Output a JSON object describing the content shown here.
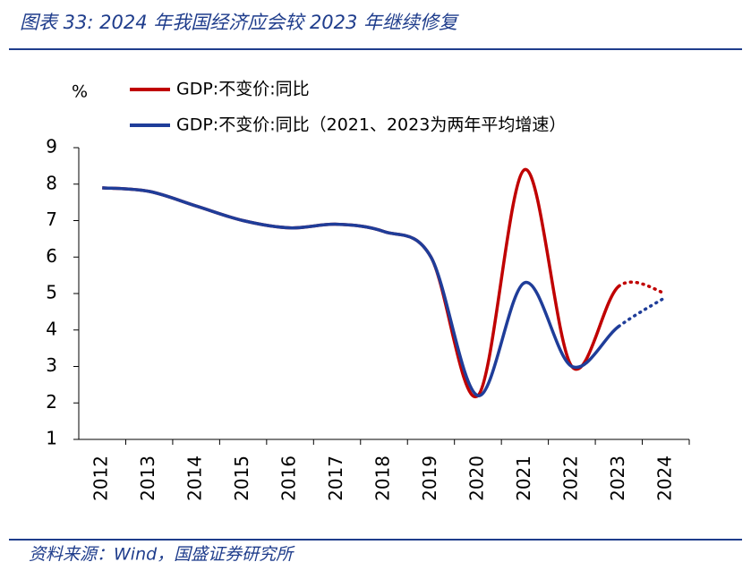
{
  "title": "图表 33:  2024 年我国经济应会较 2023 年继续修复",
  "source": "资料来源：Wind，国盛证券研究所",
  "chart_data": {
    "type": "line",
    "y_unit": "%",
    "categories": [
      "2012",
      "2013",
      "2014",
      "2015",
      "2016",
      "2017",
      "2018",
      "2019",
      "2020",
      "2021",
      "2022",
      "2023",
      "2024"
    ],
    "series": [
      {
        "name": "GDP:不变价:同比",
        "color": "#c00000",
        "values": [
          7.9,
          7.8,
          7.4,
          7.0,
          6.8,
          6.9,
          6.7,
          6.0,
          2.2,
          8.4,
          3.0,
          5.2,
          5.0
        ]
      },
      {
        "name": "GDP:不变价:同比（2021、2023为两年平均增速）",
        "color": "#1f3d99",
        "values": [
          7.9,
          7.8,
          7.4,
          7.0,
          6.8,
          6.9,
          6.7,
          6.0,
          2.2,
          5.3,
          3.0,
          4.1,
          4.9
        ]
      }
    ],
    "dotted_from": "2023",
    "ylim": [
      1,
      9
    ],
    "yticks": [
      1,
      2,
      3,
      4,
      5,
      6,
      7,
      8,
      9
    ]
  }
}
